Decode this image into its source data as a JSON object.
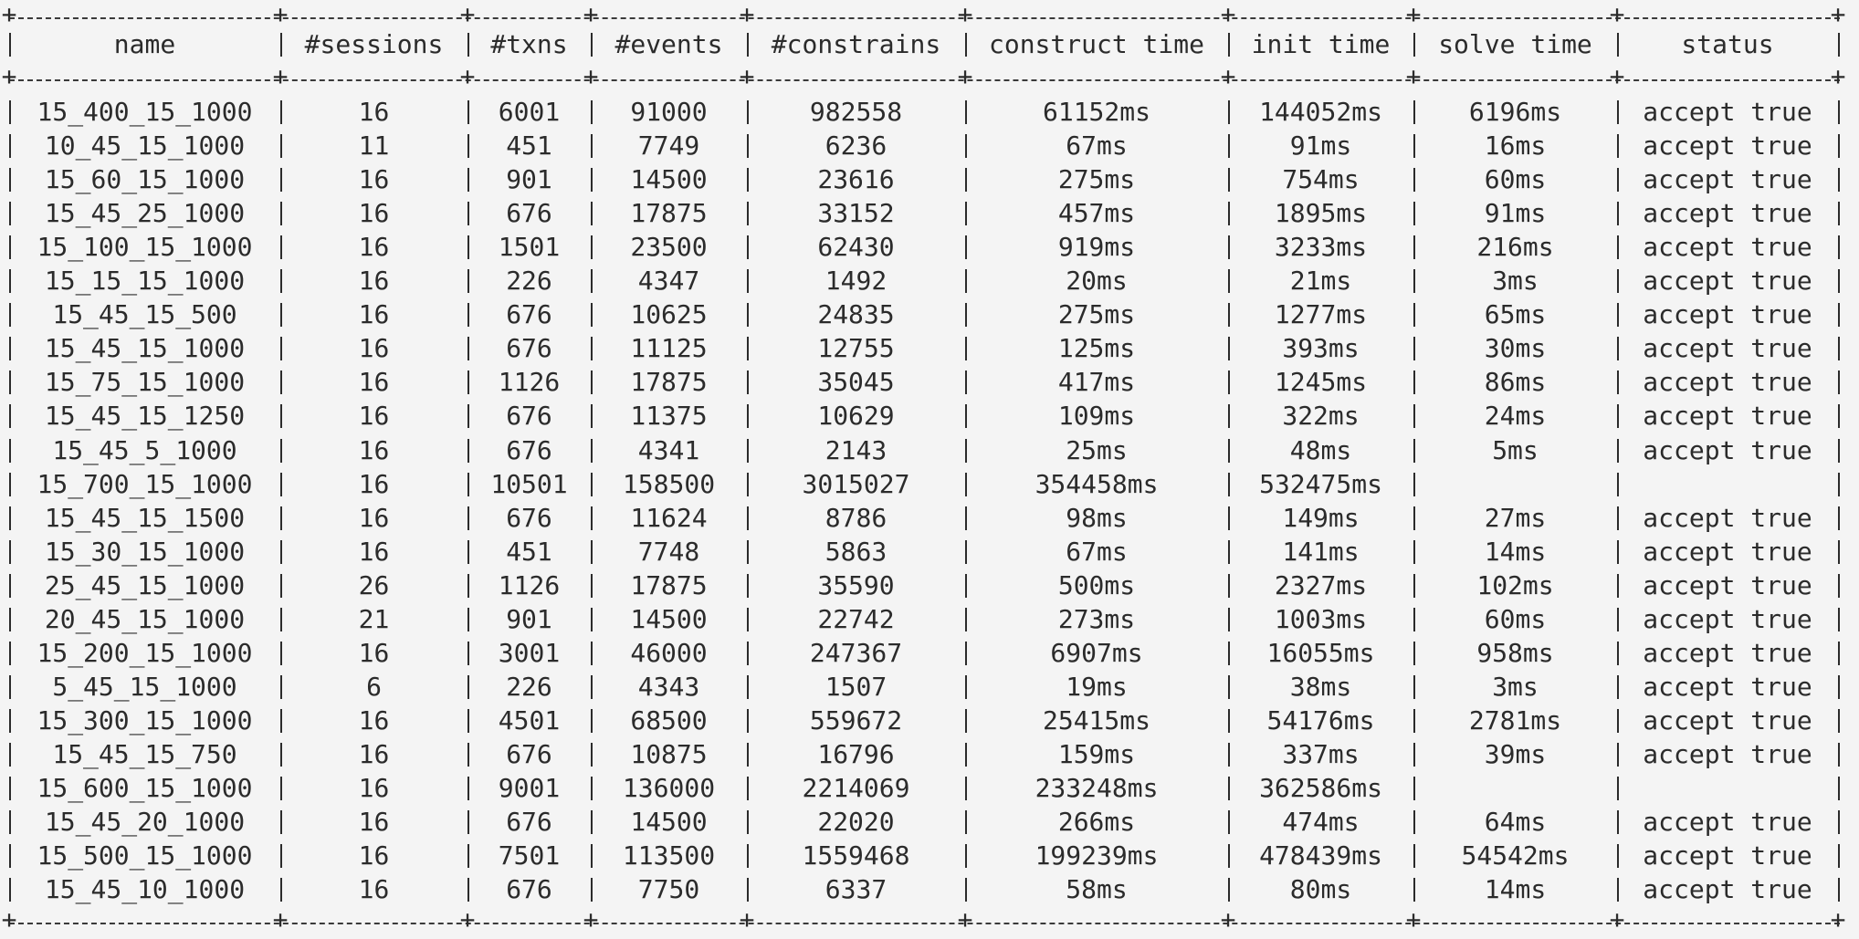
{
  "table": {
    "columns": [
      "name",
      "#sessions",
      "#txns",
      "#events",
      "#constrains",
      "construct time",
      "init time",
      "solve time",
      "status"
    ],
    "rows": [
      [
        "15_400_15_1000",
        "16",
        "6001",
        "91000",
        "982558",
        "61152ms",
        "144052ms",
        "6196ms",
        "accept true"
      ],
      [
        "10_45_15_1000",
        "11",
        "451",
        "7749",
        "6236",
        "67ms",
        "91ms",
        "16ms",
        "accept true"
      ],
      [
        "15_60_15_1000",
        "16",
        "901",
        "14500",
        "23616",
        "275ms",
        "754ms",
        "60ms",
        "accept true"
      ],
      [
        "15_45_25_1000",
        "16",
        "676",
        "17875",
        "33152",
        "457ms",
        "1895ms",
        "91ms",
        "accept true"
      ],
      [
        "15_100_15_1000",
        "16",
        "1501",
        "23500",
        "62430",
        "919ms",
        "3233ms",
        "216ms",
        "accept true"
      ],
      [
        "15_15_15_1000",
        "16",
        "226",
        "4347",
        "1492",
        "20ms",
        "21ms",
        "3ms",
        "accept true"
      ],
      [
        "15_45_15_500",
        "16",
        "676",
        "10625",
        "24835",
        "275ms",
        "1277ms",
        "65ms",
        "accept true"
      ],
      [
        "15_45_15_1000",
        "16",
        "676",
        "11125",
        "12755",
        "125ms",
        "393ms",
        "30ms",
        "accept true"
      ],
      [
        "15_75_15_1000",
        "16",
        "1126",
        "17875",
        "35045",
        "417ms",
        "1245ms",
        "86ms",
        "accept true"
      ],
      [
        "15_45_15_1250",
        "16",
        "676",
        "11375",
        "10629",
        "109ms",
        "322ms",
        "24ms",
        "accept true"
      ],
      [
        "15_45_5_1000",
        "16",
        "676",
        "4341",
        "2143",
        "25ms",
        "48ms",
        "5ms",
        "accept true"
      ],
      [
        "15_700_15_1000",
        "16",
        "10501",
        "158500",
        "3015027",
        "354458ms",
        "532475ms",
        "",
        ""
      ],
      [
        "15_45_15_1500",
        "16",
        "676",
        "11624",
        "8786",
        "98ms",
        "149ms",
        "27ms",
        "accept true"
      ],
      [
        "15_30_15_1000",
        "16",
        "451",
        "7748",
        "5863",
        "67ms",
        "141ms",
        "14ms",
        "accept true"
      ],
      [
        "25_45_15_1000",
        "26",
        "1126",
        "17875",
        "35590",
        "500ms",
        "2327ms",
        "102ms",
        "accept true"
      ],
      [
        "20_45_15_1000",
        "21",
        "901",
        "14500",
        "22742",
        "273ms",
        "1003ms",
        "60ms",
        "accept true"
      ],
      [
        "15_200_15_1000",
        "16",
        "3001",
        "46000",
        "247367",
        "6907ms",
        "16055ms",
        "958ms",
        "accept true"
      ],
      [
        "5_45_15_1000",
        "6",
        "226",
        "4343",
        "1507",
        "19ms",
        "38ms",
        "3ms",
        "accept true"
      ],
      [
        "15_300_15_1000",
        "16",
        "4501",
        "68500",
        "559672",
        "25415ms",
        "54176ms",
        "2781ms",
        "accept true"
      ],
      [
        "15_45_15_750",
        "16",
        "676",
        "10875",
        "16796",
        "159ms",
        "337ms",
        "39ms",
        "accept true"
      ],
      [
        "15_600_15_1000",
        "16",
        "9001",
        "136000",
        "2214069",
        "233248ms",
        "362586ms",
        "",
        ""
      ],
      [
        "15_45_20_1000",
        "16",
        "676",
        "14500",
        "22020",
        "266ms",
        "474ms",
        "64ms",
        "accept true"
      ],
      [
        "15_500_15_1000",
        "16",
        "7501",
        "113500",
        "1559468",
        "199239ms",
        "478439ms",
        "54542ms",
        "accept true"
      ],
      [
        "15_45_10_1000",
        "16",
        "676",
        "7750",
        "6337",
        "58ms",
        "80ms",
        "14ms",
        "accept true"
      ]
    ]
  }
}
